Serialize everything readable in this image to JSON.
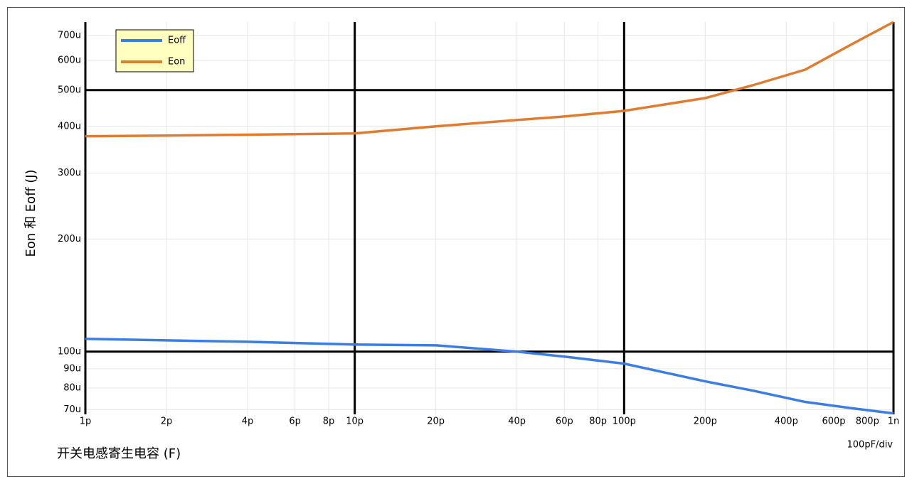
{
  "chart_data": {
    "type": "line",
    "y_label": "Eon 和 Eoff (J)",
    "x_label": "开关电感寄生电容 (F)",
    "annotation": "100pF/div",
    "log_x": true,
    "log_y": true,
    "grid": true,
    "legend": "top-left",
    "x": [
      1,
      2,
      4,
      10,
      20,
      40,
      60,
      100,
      200,
      300,
      470,
      700,
      1000
    ],
    "series": [
      {
        "name": "Eoff",
        "color": "#3b7de0",
        "values": [
          108.2,
          107.2,
          106.3,
          104.5,
          104,
          100,
          97,
          92.9,
          83.3,
          78.7,
          73.4,
          70.6,
          68.4
        ]
      },
      {
        "name": "Eon",
        "color": "#e07b2f",
        "values": [
          376.5,
          378,
          380,
          383,
          400,
          416,
          425,
          440,
          476,
          515,
          567,
          663,
          760
        ]
      }
    ],
    "xlim": [
      1,
      1000
    ],
    "ylim": [
      68,
      760
    ],
    "xticks": [
      {
        "value": 1,
        "label": "1p",
        "major": true
      },
      {
        "value": 2,
        "label": "2p"
      },
      {
        "value": 4,
        "label": "4p"
      },
      {
        "value": 6,
        "label": "6p"
      },
      {
        "value": 8,
        "label": "8p"
      },
      {
        "value": 10,
        "label": "10p",
        "major": true
      },
      {
        "value": 20,
        "label": "20p"
      },
      {
        "value": 40,
        "label": "40p"
      },
      {
        "value": 60,
        "label": "60p"
      },
      {
        "value": 80,
        "label": "80p"
      },
      {
        "value": 100,
        "label": "100p",
        "major": true
      },
      {
        "value": 200,
        "label": "200p"
      },
      {
        "value": 400,
        "label": "400p"
      },
      {
        "value": 600,
        "label": "600p"
      },
      {
        "value": 800,
        "label": "800p"
      },
      {
        "value": 1000,
        "label": "1n",
        "major": true
      }
    ],
    "yticks": [
      {
        "value": 70,
        "label": "70u"
      },
      {
        "value": 80,
        "label": "80u"
      },
      {
        "value": 90,
        "label": "90u"
      },
      {
        "value": 100,
        "label": "100u",
        "major": true
      },
      {
        "value": 200,
        "label": "200u"
      },
      {
        "value": 300,
        "label": "300u"
      },
      {
        "value": 400,
        "label": "400u"
      },
      {
        "value": 500,
        "label": "500u",
        "major": true
      },
      {
        "value": 600,
        "label": "600u"
      },
      {
        "value": 700,
        "label": "700u"
      }
    ]
  }
}
